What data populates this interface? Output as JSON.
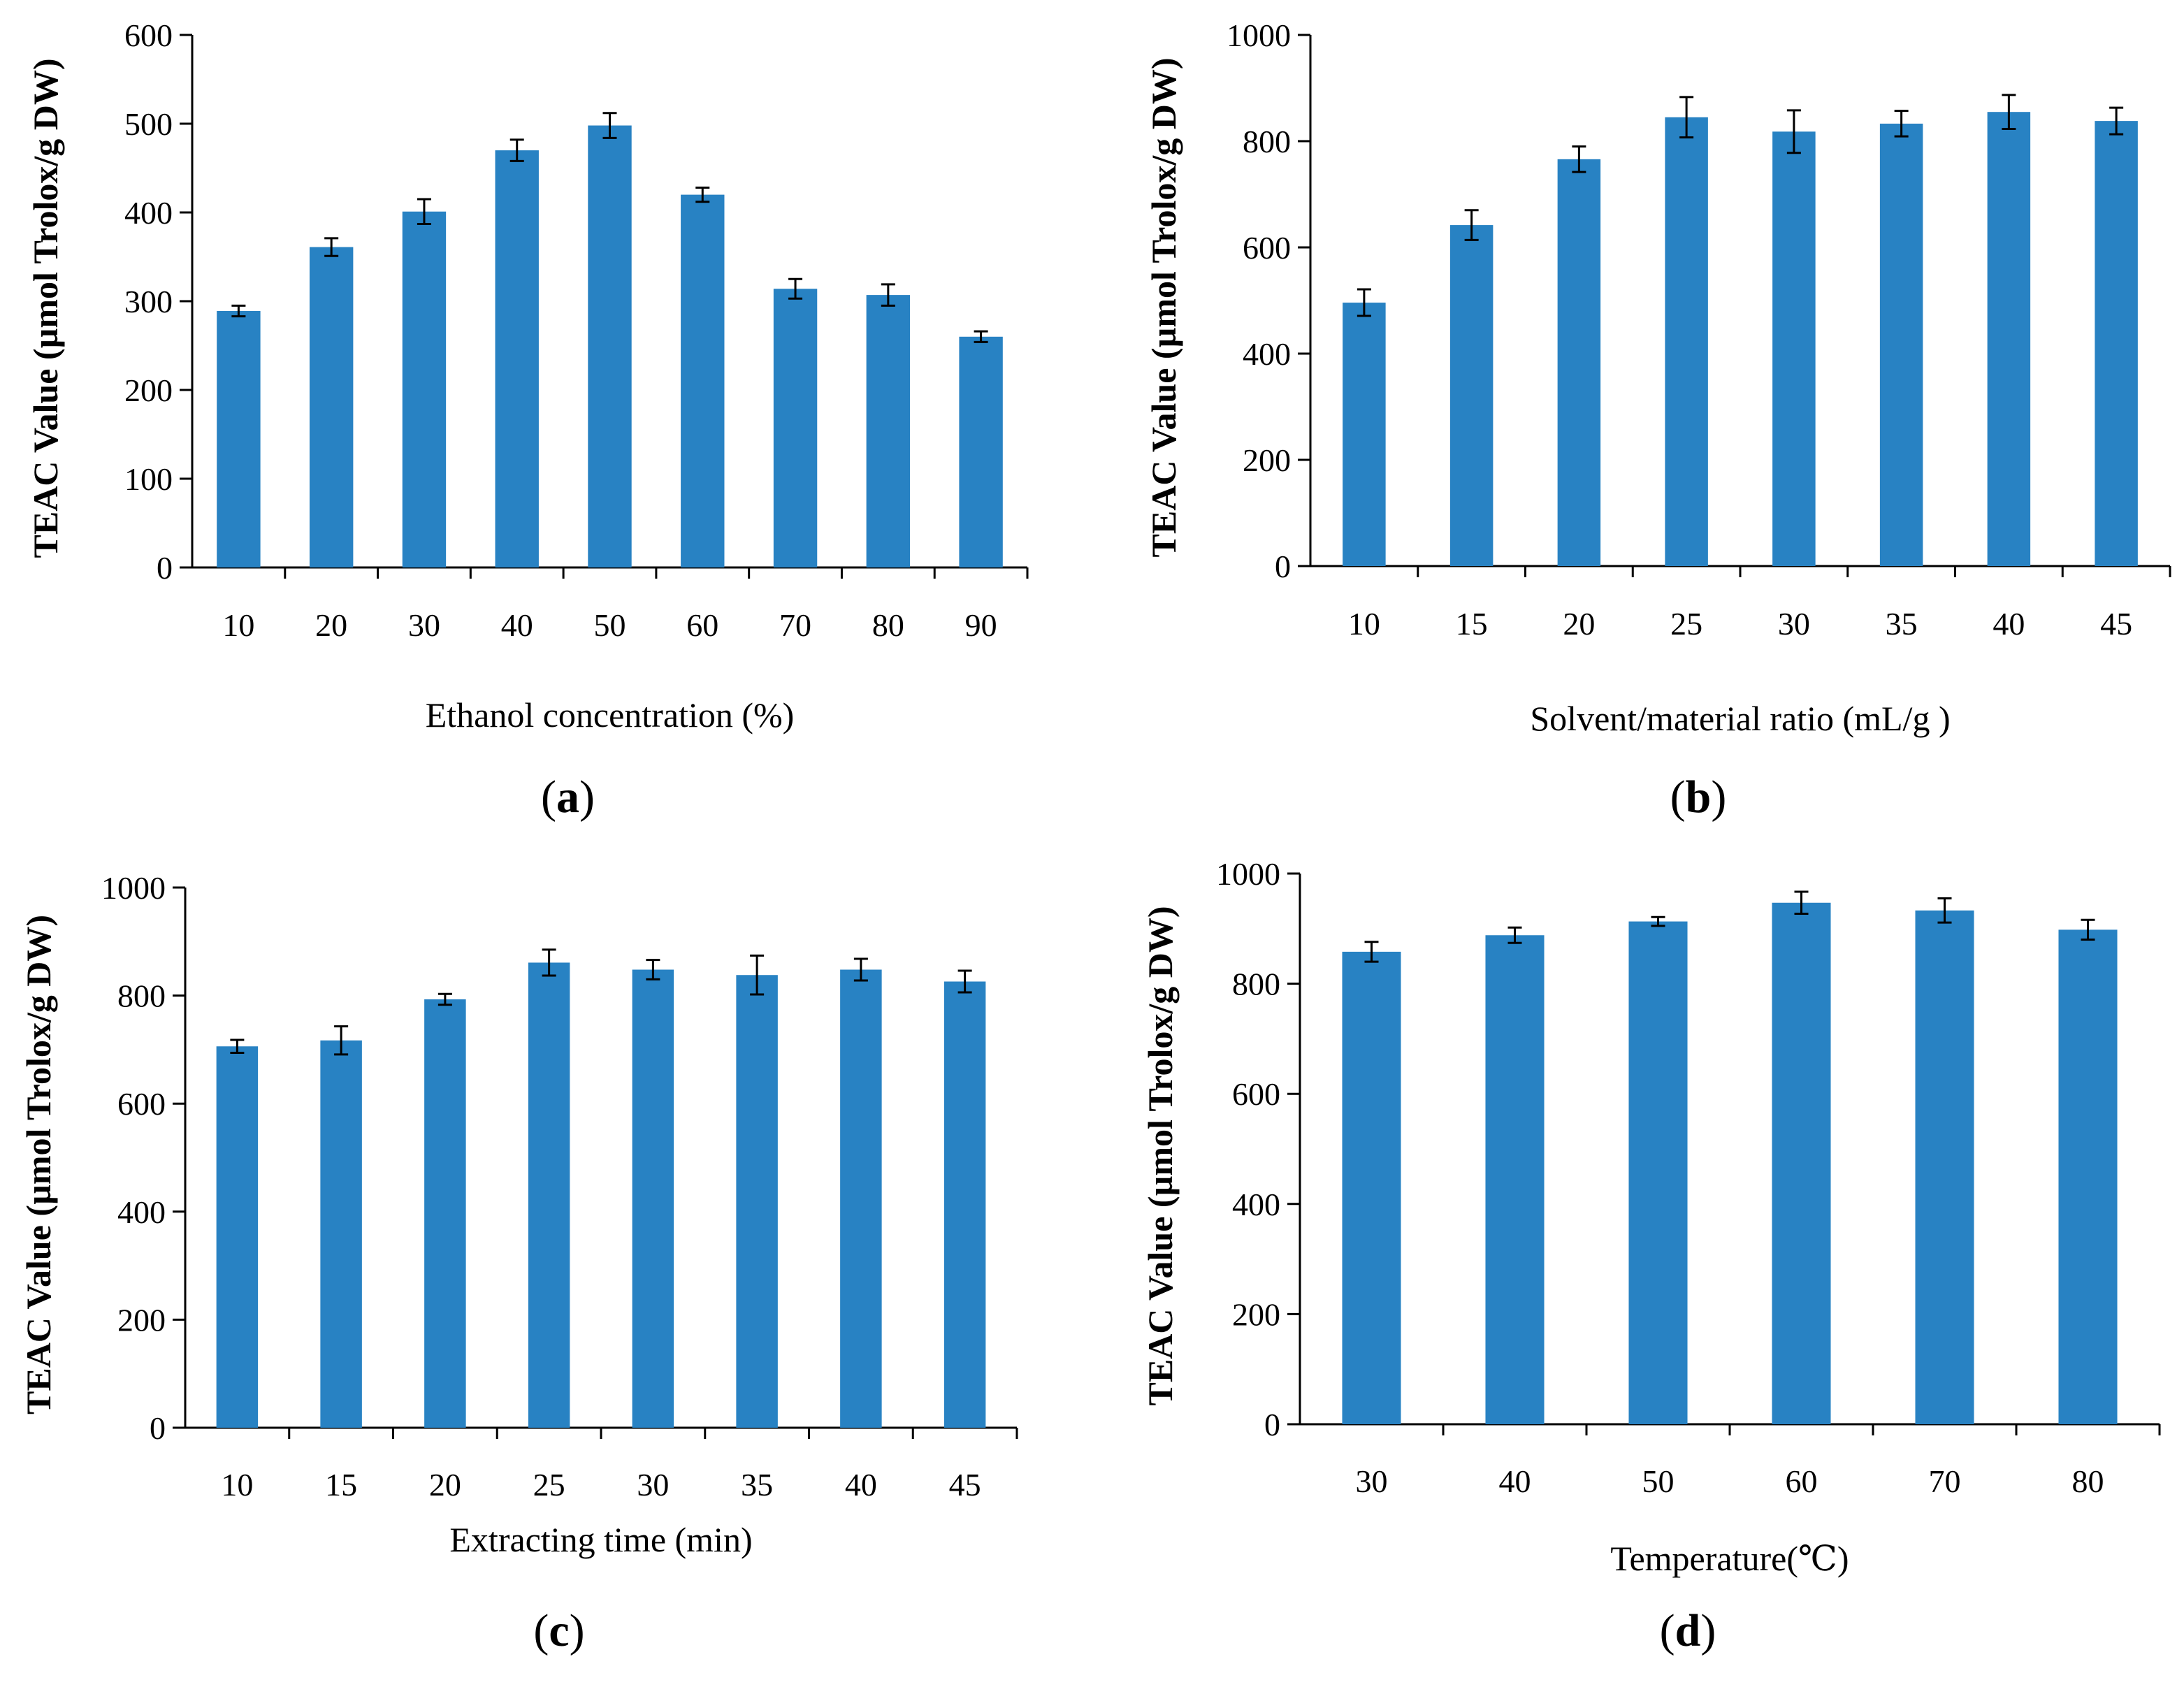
{
  "chart_data": [
    {
      "type": "bar",
      "panel_label": "a",
      "categories": [
        "10",
        "20",
        "30",
        "40",
        "50",
        "60",
        "70",
        "80",
        "90"
      ],
      "values": [
        289,
        361,
        401,
        470,
        498,
        420,
        314,
        307,
        260
      ],
      "errors": [
        6,
        10,
        14,
        12,
        14,
        8,
        11,
        12,
        6
      ],
      "xlabel": "Ethanol  concentration  (%)",
      "ylabel": "TEAC Value (µmol Trolox/g DW)",
      "ylim": [
        0,
        600
      ],
      "yticks": [
        0,
        100,
        200,
        300,
        400,
        500,
        600
      ],
      "color": "#2882c3",
      "grid": false
    },
    {
      "type": "bar",
      "panel_label": "b",
      "categories": [
        "10",
        "15",
        "20",
        "25",
        "30",
        "35",
        "40",
        "45"
      ],
      "values": [
        496,
        642,
        766,
        845,
        818,
        833,
        855,
        838
      ],
      "errors": [
        25,
        28,
        24,
        38,
        40,
        24,
        32,
        25
      ],
      "xlabel": "Solvent/material ratio (mL/g )",
      "ylabel": "TEAC Value (µmol Trolox/g DW)",
      "ylim": [
        0,
        1000
      ],
      "yticks": [
        0,
        200,
        400,
        600,
        800,
        1000
      ],
      "color": "#2882c3",
      "grid": false
    },
    {
      "type": "bar",
      "panel_label": "c",
      "categories": [
        "10",
        "15",
        "20",
        "25",
        "30",
        "35",
        "40",
        "45"
      ],
      "values": [
        706,
        717,
        793,
        861,
        848,
        838,
        848,
        826
      ],
      "errors": [
        12,
        26,
        10,
        24,
        18,
        36,
        20,
        20
      ],
      "xlabel": "Extracting time (min)",
      "ylabel": "TEAC Value (µmol Trolox/g DW)",
      "ylim": [
        0,
        1000
      ],
      "yticks": [
        0,
        200,
        400,
        600,
        800,
        1000
      ],
      "color": "#2882c3",
      "grid": false
    },
    {
      "type": "bar",
      "panel_label": "d",
      "categories": [
        "30",
        "40",
        "50",
        "60",
        "70",
        "80"
      ],
      "values": [
        858,
        888,
        913,
        947,
        933,
        898
      ],
      "errors": [
        18,
        14,
        8,
        20,
        22,
        18
      ],
      "xlabel": "Temperature(℃)",
      "ylabel": "TEAC Value (µmol Trolox/g DW)",
      "ylim": [
        0,
        1000
      ],
      "yticks": [
        0,
        200,
        400,
        600,
        800,
        1000
      ],
      "color": "#2882c3",
      "grid": false
    }
  ]
}
